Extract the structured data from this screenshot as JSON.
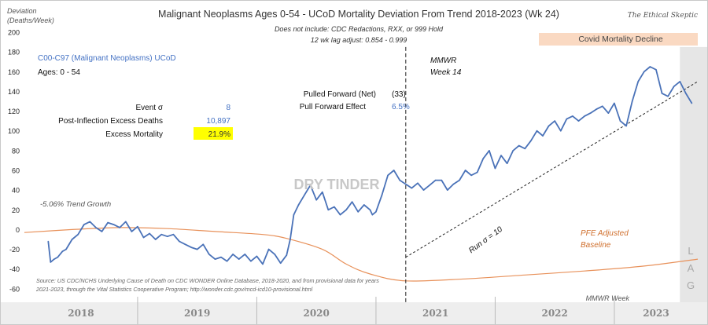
{
  "header": {
    "title": "Malignant Neoplasms Ages 0-54 - UCoD Mortality Deviation From Trend  2018-2023 (Wk 24)",
    "subtitle1": "Does not include: CDC Redactions,  RXX, or 999 Hold",
    "subtitle2": "12 wk lag adjust: 0.854 - 0.999",
    "brand": "The Ethical Skeptic"
  },
  "axis": {
    "ylabel_line1": "Deviation",
    "ylabel_line2": "(Deaths/Week)",
    "xlabel": "MMWR Week",
    "year_labels": [
      "2018",
      "2019",
      "2020",
      "2021",
      "2022",
      "2023"
    ]
  },
  "panel": {
    "series_title": "C00-C97 (Malignant Neoplasms) UCoD",
    "ages": "Ages: 0 - 54",
    "event_sigma_label": "Event σ",
    "event_sigma_value": "8",
    "post_inflection_label": "Post-Inflection Excess Deaths",
    "post_inflection_value": "10,897",
    "excess_mortality_label": "Excess Mortality",
    "excess_mortality_value": "21.9%",
    "pulled_forward_label": "Pulled Forward (Net)",
    "pulled_forward_value": "(33)",
    "pull_forward_effect_label": "Pull Forward Effect",
    "pull_forward_effect_value": "6.5%"
  },
  "annotations": {
    "dry_tinder": "DRY TINDER",
    "trend_growth": "-5.06% Trend Growth",
    "mmwr_line1": "MMWR",
    "mmwr_line2": "Week 14",
    "run_sigma": "Run σ = 10",
    "pfe_line1": "PFE Adjusted",
    "pfe_line2": "Baseline",
    "covid_banner": "Covid Mortality Decline",
    "lag": [
      "L",
      "A",
      "G"
    ],
    "source_line1": "Source: US CDC/NCHS Underlying Cause of Death on CDC WONDER Online Database, 2018-2020, and from provisional data for years",
    "source_line2": "2021-2023, through the Vital Statistics Cooperative Program; http://wonder.cdc.gov/mcd-icd10-provisional.html"
  },
  "colors": {
    "series": "#4a72b8",
    "baseline": "#e8915a",
    "label_blue": "#4472c4",
    "highlight": "#ffff00",
    "banner": "#fad9c2",
    "lag_band": "#e6e6e6",
    "pfe_text": "#d0702e"
  },
  "chart_data": {
    "type": "line",
    "title": "Malignant Neoplasms Ages 0-54 - UCoD Mortality Deviation From Trend  2018-2023 (Wk 24)",
    "ylabel": "Deviation (Deaths/Week)",
    "xlabel": "MMWR Week",
    "ylim": [
      -80,
      200
    ],
    "yticks": [
      -80,
      -60,
      -40,
      -20,
      0,
      20,
      40,
      60,
      80,
      100,
      120,
      140,
      160,
      180,
      200
    ],
    "xlim": [
      2017.8,
      2023.45
    ],
    "grid": false,
    "series": [
      {
        "name": "C00-C97 (Malignant Neoplasms) UCoD",
        "x": [
          2018.0,
          2018.02,
          2018.05,
          2018.08,
          2018.12,
          2018.15,
          2018.2,
          2018.25,
          2018.3,
          2018.35,
          2018.4,
          2018.45,
          2018.5,
          2018.55,
          2018.6,
          2018.65,
          2018.7,
          2018.75,
          2018.8,
          2018.85,
          2018.9,
          2018.95,
          2019.0,
          2019.05,
          2019.1,
          2019.15,
          2019.2,
          2019.25,
          2019.3,
          2019.35,
          2019.4,
          2019.45,
          2019.5,
          2019.55,
          2019.6,
          2019.65,
          2019.7,
          2019.75,
          2019.8,
          2019.85,
          2019.9,
          2019.95,
          2020.0,
          2020.03,
          2020.06,
          2020.1,
          2020.15,
          2020.2,
          2020.25,
          2020.3,
          2020.35,
          2020.4,
          2020.45,
          2020.5,
          2020.55,
          2020.6,
          2020.65,
          2020.7,
          2020.72,
          2020.75,
          2020.8,
          2020.85,
          2020.9,
          2020.95,
          2021.0,
          2021.05,
          2021.1,
          2021.15,
          2021.2,
          2021.25,
          2021.3,
          2021.35,
          2021.4,
          2021.45,
          2021.5,
          2021.55,
          2021.6,
          2021.65,
          2021.7,
          2021.75,
          2021.8,
          2021.85,
          2021.9,
          2021.95,
          2022.0,
          2022.05,
          2022.1,
          2022.15,
          2022.2,
          2022.25,
          2022.3,
          2022.35,
          2022.4,
          2022.45,
          2022.5,
          2022.55,
          2022.6,
          2022.65,
          2022.7,
          2022.75,
          2022.8,
          2022.85,
          2022.9,
          2022.95,
          2023.0,
          2023.05,
          2023.1,
          2023.15,
          2023.2,
          2023.25,
          2023.3,
          2023.35,
          2023.4
        ],
        "y": [
          -12,
          -33,
          -30,
          -28,
          -22,
          -20,
          -10,
          -5,
          5,
          8,
          2,
          -2,
          7,
          5,
          2,
          8,
          -2,
          3,
          -8,
          -4,
          -10,
          -5,
          -7,
          -5,
          -12,
          -15,
          -18,
          -20,
          -15,
          -25,
          -30,
          -28,
          -32,
          -25,
          -30,
          -25,
          -32,
          -27,
          -35,
          -20,
          -25,
          -34,
          -26,
          -10,
          15,
          25,
          35,
          45,
          30,
          38,
          20,
          23,
          15,
          20,
          28,
          18,
          25,
          20,
          15,
          18,
          35,
          55,
          60,
          50,
          46,
          42,
          47,
          40,
          45,
          50,
          50,
          40,
          46,
          50,
          60,
          55,
          58,
          72,
          80,
          62,
          75,
          67,
          80,
          85,
          82,
          90,
          100,
          95,
          105,
          110,
          100,
          112,
          115,
          110,
          115,
          118,
          122,
          125,
          118,
          128,
          110,
          105,
          130,
          150,
          160,
          165,
          162,
          138,
          135,
          145,
          150,
          138,
          128
        ]
      },
      {
        "name": "PFE Adjusted Baseline",
        "x": [
          2017.8,
          2018.2,
          2018.6,
          2019.0,
          2019.4,
          2019.8,
          2020.0,
          2020.3,
          2020.5,
          2020.7,
          2021.0,
          2021.5,
          2022.0,
          2022.5,
          2023.0,
          2023.45
        ],
        "y": [
          -3,
          0,
          2,
          1,
          -2,
          -5,
          -9,
          -20,
          -35,
          -45,
          -52,
          -50,
          -46,
          -42,
          -37,
          -30
        ]
      },
      {
        "name": "Run σ = 10",
        "x": [
          2021.0,
          2023.45
        ],
        "y": [
          -28,
          150
        ]
      }
    ]
  }
}
